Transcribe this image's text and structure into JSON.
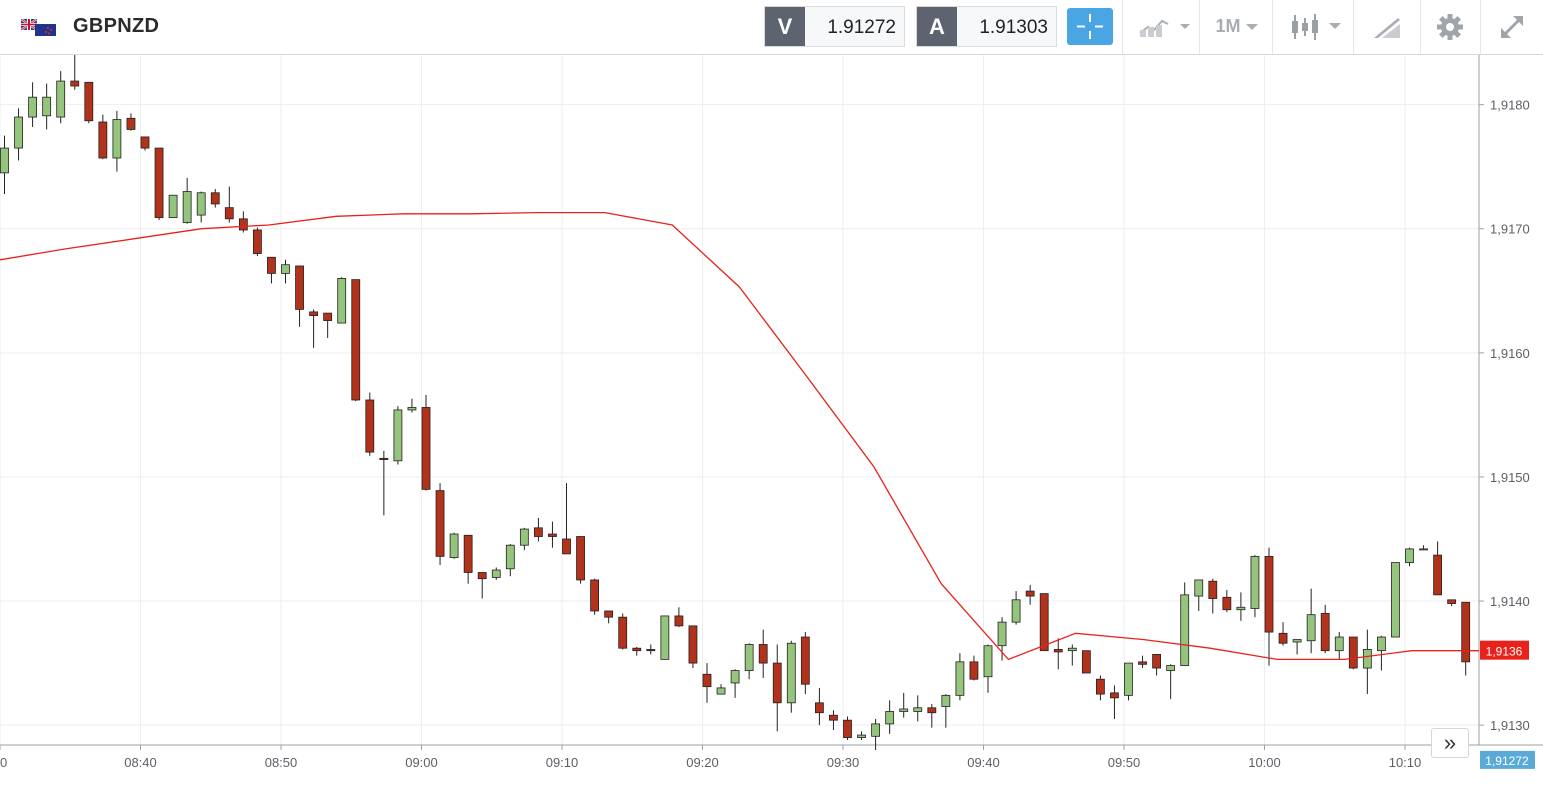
{
  "header": {
    "symbol": "GBPNZD",
    "flag_icon": "gb-nz-flag-icon",
    "sell": {
      "label": "V",
      "price": "1.91272"
    },
    "buy": {
      "label": "A",
      "price": "1.91303"
    },
    "timeframe": "1M",
    "icons": [
      "crosshair-icon",
      "chart-type-icon",
      "candlestick-icon",
      "drawing-tool-icon",
      "gear-icon",
      "fullscreen-icon"
    ]
  },
  "colors": {
    "up": "#95c47c",
    "down": "#b3321b",
    "ma": "#e8221b",
    "current_price_bg": "#e8221b",
    "last_price_bg": "#5aaad8",
    "accent": "#4aa6e3"
  },
  "chart_data": {
    "type": "candlestick",
    "symbol": "GBPNZD",
    "interval": "1M",
    "x_ticks": [
      "0",
      "08:40",
      "08:50",
      "09:00",
      "09:10",
      "09:20",
      "09:30",
      "09:40",
      "09:50",
      "10:00",
      "10:10"
    ],
    "y_ticks": [
      "1,9130",
      "1,9140",
      "1,9150",
      "1,9160",
      "1,9170",
      "1,9180"
    ],
    "ylim": [
      1.91284,
      1.9184
    ],
    "current_price_label": "1,9136",
    "last_price_label": "1,91272",
    "grid": true,
    "candles_ohlc": [
      [
        1.91745,
        1.91775,
        1.91728,
        1.91765
      ],
      [
        1.91765,
        1.91797,
        1.91755,
        1.9179
      ],
      [
        1.9179,
        1.91818,
        1.91782,
        1.91806
      ],
      [
        1.91791,
        1.91817,
        1.9178,
        1.91806
      ],
      [
        1.9179,
        1.91827,
        1.91785,
        1.91819
      ],
      [
        1.91819,
        1.9184,
        1.91812,
        1.91815
      ],
      [
        1.91818,
        1.91818,
        1.91785,
        1.91787
      ],
      [
        1.91786,
        1.91792,
        1.91756,
        1.91757
      ],
      [
        1.91757,
        1.91795,
        1.91746,
        1.91788
      ],
      [
        1.91789,
        1.91793,
        1.91779,
        1.9178
      ],
      [
        1.91774,
        1.91774,
        1.91763,
        1.91765
      ],
      [
        1.91765,
        1.91765,
        1.91707,
        1.91709
      ],
      [
        1.91709,
        1.91727,
        1.91709,
        1.91727
      ],
      [
        1.91705,
        1.91741,
        1.91704,
        1.9173
      ],
      [
        1.91711,
        1.9173,
        1.91705,
        1.91729
      ],
      [
        1.91729,
        1.91732,
        1.91717,
        1.9172
      ],
      [
        1.91717,
        1.91734,
        1.91705,
        1.91708
      ],
      [
        1.91708,
        1.91714,
        1.91697,
        1.91699
      ],
      [
        1.91699,
        1.91701,
        1.91678,
        1.9168
      ],
      [
        1.91677,
        1.91677,
        1.91656,
        1.91664
      ],
      [
        1.91664,
        1.91675,
        1.91656,
        1.91671
      ],
      [
        1.9167,
        1.9167,
        1.91621,
        1.91635
      ],
      [
        1.91633,
        1.91635,
        1.91604,
        1.9163
      ],
      [
        1.91632,
        1.91632,
        1.91612,
        1.91626
      ],
      [
        1.91624,
        1.91661,
        1.91624,
        1.9166
      ],
      [
        1.91659,
        1.91659,
        1.91561,
        1.91562
      ],
      [
        1.91562,
        1.91568,
        1.91517,
        1.9152
      ],
      [
        1.91515,
        1.91521,
        1.91469,
        1.91514
      ],
      [
        1.91513,
        1.91557,
        1.9151,
        1.91554
      ],
      [
        1.91554,
        1.91563,
        1.91552,
        1.91556
      ],
      [
        1.91556,
        1.91566,
        1.91489,
        1.9149
      ],
      [
        1.91489,
        1.91495,
        1.91429,
        1.91436
      ],
      [
        1.91435,
        1.91455,
        1.91434,
        1.91454
      ],
      [
        1.91453,
        1.91453,
        1.91414,
        1.91423
      ],
      [
        1.91423,
        1.91422,
        1.91402,
        1.91418
      ],
      [
        1.91419,
        1.91427,
        1.91417,
        1.91425
      ],
      [
        1.91426,
        1.91446,
        1.9142,
        1.91445
      ],
      [
        1.91445,
        1.91459,
        1.91441,
        1.91458
      ],
      [
        1.91459,
        1.91467,
        1.91448,
        1.91452
      ],
      [
        1.91454,
        1.91464,
        1.91443,
        1.91452
      ],
      [
        1.9145,
        1.91495,
        1.91438,
        1.91438
      ],
      [
        1.91452,
        1.91452,
        1.91414,
        1.91417
      ],
      [
        1.91417,
        1.91418,
        1.91389,
        1.91392
      ],
      [
        1.91392,
        1.91392,
        1.91382,
        1.91387
      ],
      [
        1.91387,
        1.9139,
        1.91361,
        1.91362
      ],
      [
        1.91362,
        1.91363,
        1.91356,
        1.9136
      ],
      [
        1.91361,
        1.91365,
        1.91357,
        1.9136
      ],
      [
        1.91353,
        1.91388,
        1.91353,
        1.91388
      ],
      [
        1.91388,
        1.91395,
        1.91379,
        1.9138
      ],
      [
        1.9138,
        1.9138,
        1.91346,
        1.9135
      ],
      [
        1.91341,
        1.9135,
        1.91318,
        1.91331
      ],
      [
        1.91325,
        1.91333,
        1.91326,
        1.9133
      ],
      [
        1.91334,
        1.91345,
        1.91322,
        1.91344
      ],
      [
        1.91344,
        1.91366,
        1.91337,
        1.91365
      ],
      [
        1.91365,
        1.91377,
        1.91338,
        1.9135
      ],
      [
        1.9135,
        1.91365,
        1.91295,
        1.91318
      ],
      [
        1.91318,
        1.91368,
        1.9131,
        1.91366
      ],
      [
        1.91371,
        1.91375,
        1.91325,
        1.91333
      ],
      [
        1.91318,
        1.9133,
        1.913,
        1.9131
      ],
      [
        1.91308,
        1.91312,
        1.91296,
        1.91304
      ],
      [
        1.91304,
        1.91307,
        1.91288,
        1.9129
      ],
      [
        1.9129,
        1.91295,
        1.91288,
        1.91292
      ],
      [
        1.91291,
        1.91305,
        1.9128,
        1.91301
      ],
      [
        1.91301,
        1.9132,
        1.91293,
        1.91311
      ],
      [
        1.91311,
        1.91326,
        1.91306,
        1.91313
      ],
      [
        1.91311,
        1.91324,
        1.91303,
        1.91314
      ],
      [
        1.91314,
        1.91317,
        1.91298,
        1.9131
      ],
      [
        1.91315,
        1.91325,
        1.91298,
        1.91324
      ],
      [
        1.91324,
        1.91358,
        1.9132,
        1.91351
      ],
      [
        1.91351,
        1.91356,
        1.91336,
        1.91337
      ],
      [
        1.91339,
        1.91365,
        1.91326,
        1.91364
      ],
      [
        1.91364,
        1.91387,
        1.91352,
        1.91383
      ],
      [
        1.91383,
        1.91408,
        1.91381,
        1.91401
      ],
      [
        1.91408,
        1.91413,
        1.91397,
        1.91404
      ],
      [
        1.91406,
        1.91406,
        1.9136,
        1.9136
      ],
      [
        1.91361,
        1.9137,
        1.91345,
        1.91359
      ],
      [
        1.9136,
        1.91365,
        1.91348,
        1.91362
      ],
      [
        1.9136,
        1.9136,
        1.91342,
        1.91342
      ],
      [
        1.91337,
        1.9134,
        1.9132,
        1.91325
      ],
      [
        1.91326,
        1.91332,
        1.91305,
        1.91322
      ],
      [
        1.91324,
        1.9135,
        1.9132,
        1.9135
      ],
      [
        1.91351,
        1.91356,
        1.91346,
        1.91349
      ],
      [
        1.91357,
        1.91356,
        1.9134,
        1.91346
      ],
      [
        1.91344,
        1.91349,
        1.91321,
        1.91348
      ],
      [
        1.91348,
        1.91415,
        1.9135,
        1.91405
      ],
      [
        1.91404,
        1.91417,
        1.91392,
        1.91417
      ],
      [
        1.91416,
        1.91418,
        1.9139,
        1.91402
      ],
      [
        1.91403,
        1.91409,
        1.91391,
        1.91393
      ],
      [
        1.91393,
        1.91407,
        1.91384,
        1.91395
      ],
      [
        1.91394,
        1.91437,
        1.91387,
        1.91436
      ],
      [
        1.91436,
        1.91443,
        1.91348,
        1.91375
      ],
      [
        1.91374,
        1.91383,
        1.91364,
        1.91366
      ],
      [
        1.91367,
        1.91369,
        1.91357,
        1.91369
      ],
      [
        1.91368,
        1.9141,
        1.91358,
        1.91389
      ],
      [
        1.9139,
        1.91397,
        1.91358,
        1.9136
      ],
      [
        1.9136,
        1.91375,
        1.91353,
        1.91371
      ],
      [
        1.91371,
        1.91371,
        1.91345,
        1.91346
      ],
      [
        1.91346,
        1.91377,
        1.91325,
        1.91361
      ],
      [
        1.9136,
        1.91372,
        1.91344,
        1.91371
      ],
      [
        1.91371,
        1.91431,
        1.91371,
        1.91431
      ],
      [
        1.91431,
        1.91443,
        1.91428,
        1.91442
      ],
      [
        1.91442,
        1.91445,
        1.91441,
        1.91442
      ],
      [
        1.91437,
        1.91448,
        1.91405,
        1.91405
      ],
      [
        1.91401,
        1.91401,
        1.91396,
        1.91398
      ],
      [
        1.91399,
        1.91399,
        1.9134,
        1.91351
      ]
    ],
    "ma": [
      1.91675,
      1.91684,
      1.91692,
      1.917,
      1.91703,
      1.9171,
      1.91712,
      1.91712,
      1.91713,
      1.91713,
      1.91703,
      1.91653,
      1.91581,
      1.91508,
      1.91414,
      1.91353,
      1.91374,
      1.91369,
      1.91362,
      1.91353,
      1.91353,
      1.9136,
      1.9136
    ]
  },
  "nav": {
    "scroll_right_label": "»"
  }
}
